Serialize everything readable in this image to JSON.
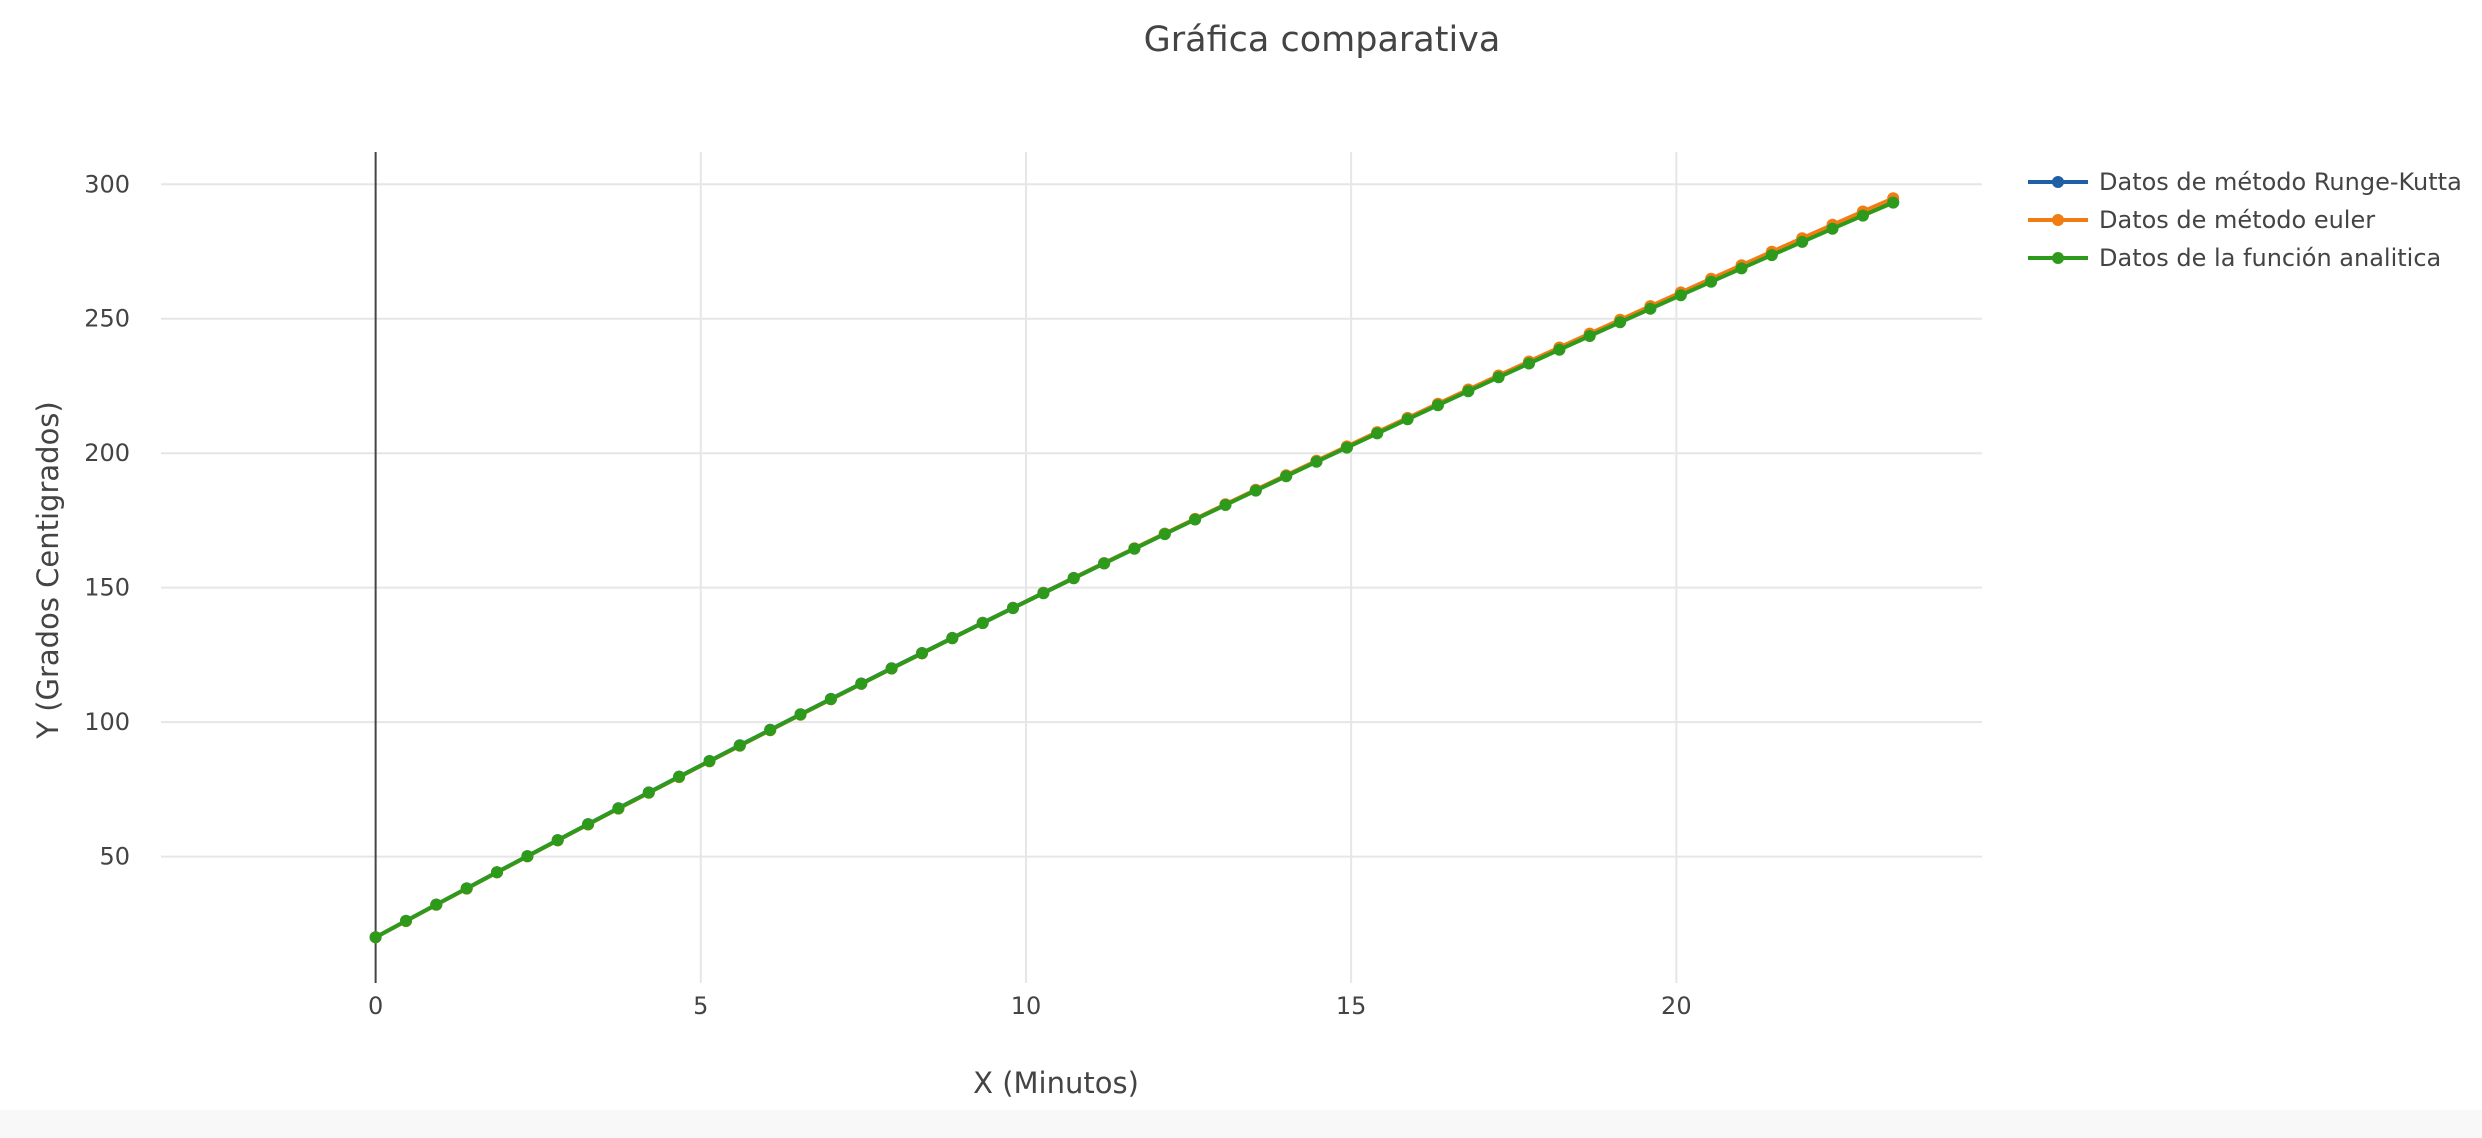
{
  "chart_data": {
    "type": "line",
    "title": "Gráfica comparativa",
    "xlabel": "X (Minutos)",
    "ylabel": "Y (Grados Centigrados)",
    "xlim": [
      -3.3,
      24.7
    ],
    "ylim": [
      3,
      312
    ],
    "x_ticks": [
      0,
      5,
      10,
      15,
      20
    ],
    "y_ticks": [
      50,
      100,
      150,
      200,
      250,
      300
    ],
    "grid": true,
    "legend_position": "top-right",
    "x": {
      "start": 0,
      "step": 0.4667,
      "count": 51
    },
    "series": [
      {
        "name": "Datos de método Runge-Kutta",
        "color": "#1f5fa6",
        "y_start": 20,
        "y_end": 293.5,
        "curvature": -0.115
      },
      {
        "name": "Datos de método euler",
        "color": "#f07c12",
        "y_start": 20,
        "y_end": 294.8,
        "curvature": -0.105
      },
      {
        "name": "Datos de la función analitica",
        "color": "#2e9a1c",
        "y_start": 20,
        "y_end": 293.2,
        "curvature": -0.115
      }
    ]
  }
}
